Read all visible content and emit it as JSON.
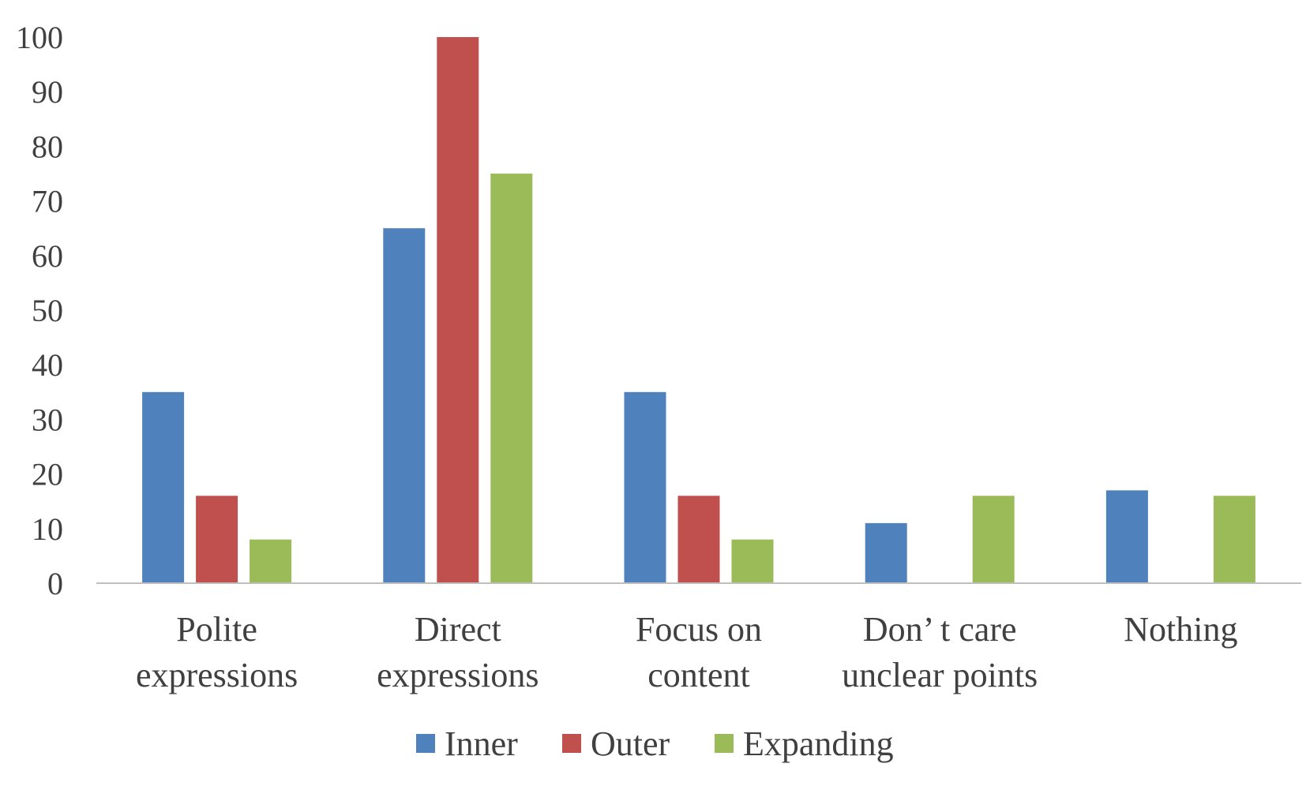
{
  "chart_data": {
    "type": "bar",
    "title": "",
    "xlabel": "",
    "ylabel": "",
    "ylim": [
      0,
      100
    ],
    "yticks": [
      0,
      10,
      20,
      30,
      40,
      50,
      60,
      70,
      80,
      90,
      100
    ],
    "grid": false,
    "legend_position": "bottom",
    "categories": [
      [
        "Polite",
        "expressions"
      ],
      [
        "Direct",
        "expressions"
      ],
      [
        "Focus on",
        "content"
      ],
      [
        "Don’ t care",
        "unclear points"
      ],
      [
        "Nothing"
      ]
    ],
    "series": [
      {
        "name": "Inner",
        "color": "#4f81bd",
        "values": [
          35,
          65,
          35,
          11,
          17
        ]
      },
      {
        "name": "Outer",
        "color": "#c0504d",
        "values": [
          16,
          100,
          16,
          0,
          0
        ]
      },
      {
        "name": "Expanding",
        "color": "#9bbb59",
        "values": [
          8,
          75,
          8,
          16,
          16
        ]
      }
    ]
  }
}
